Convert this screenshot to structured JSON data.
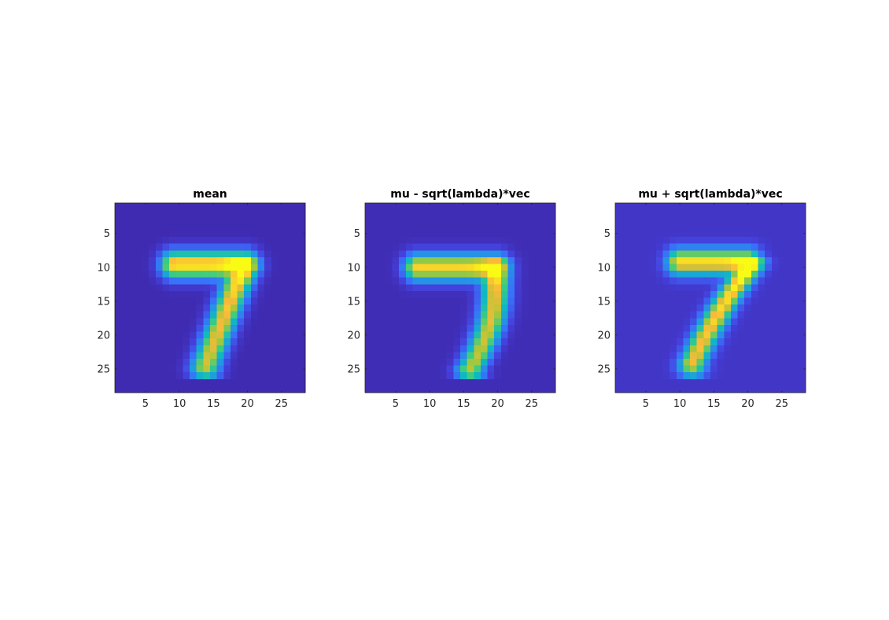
{
  "chart_data": [
    {
      "type": "heatmap",
      "title": "mean",
      "xlabel": "",
      "ylabel": "",
      "xlim": [
        0.5,
        28.5
      ],
      "ylim": [
        0.5,
        28.5
      ],
      "y_reversed": true,
      "xticks": [
        5,
        10,
        15,
        20,
        25
      ],
      "yticks": [
        5,
        10,
        15,
        20,
        25
      ],
      "grid": false,
      "colormap": "parula",
      "image_size": [
        28,
        28
      ],
      "value_range": [
        0,
        1
      ],
      "digit_shape": {
        "top_bar": {
          "row": 9.6,
          "col_start": 9.3,
          "col_end": 19.6,
          "peak": 0.98
        },
        "stroke": {
          "row_start": 10,
          "row_end": 24.6,
          "col_start": 19.4,
          "col_end": 13.8,
          "peak": 0.95,
          "curve": 0.0
        },
        "blur": 1.45,
        "background": 0.02
      }
    },
    {
      "type": "heatmap",
      "title": "mu - sqrt(lambda)*vec",
      "xlabel": "",
      "ylabel": "",
      "xlim": [
        0.5,
        28.5
      ],
      "ylim": [
        0.5,
        28.5
      ],
      "y_reversed": true,
      "xticks": [
        5,
        10,
        15,
        20,
        25
      ],
      "yticks": [
        5,
        10,
        15,
        20,
        25
      ],
      "grid": false,
      "colormap": "parula",
      "image_size": [
        28,
        28
      ],
      "value_range": [
        0,
        1
      ],
      "digit_shape": {
        "top_bar": {
          "row": 10.0,
          "col_start": 8.2,
          "col_end": 19.8,
          "peak": 0.92
        },
        "stroke": {
          "row_start": 10.2,
          "row_end": 25.0,
          "col_start": 19.6,
          "col_end": 16.0,
          "peak": 0.9,
          "curve": 1.3
        },
        "blur": 1.4,
        "background": 0.03
      }
    },
    {
      "type": "heatmap",
      "title": "mu + sqrt(lambda)*vec",
      "xlabel": "",
      "ylabel": "",
      "xlim": [
        0.5,
        28.5
      ],
      "ylim": [
        0.5,
        28.5
      ],
      "y_reversed": true,
      "xticks": [
        5,
        10,
        15,
        20,
        25
      ],
      "yticks": [
        5,
        10,
        15,
        20,
        25
      ],
      "grid": false,
      "colormap": "parula",
      "image_size": [
        28,
        28
      ],
      "value_range": [
        0,
        1
      ],
      "digit_shape": {
        "top_bar": {
          "row": 9.2,
          "col_start": 10.0,
          "col_end": 20.0,
          "peak": 0.95
        },
        "stroke": {
          "row_start": 9.6,
          "row_end": 24.2,
          "col_start": 20.4,
          "col_end": 11.8,
          "peak": 1.0,
          "curve": -0.5
        },
        "blur": 1.35,
        "background": 0.07
      }
    }
  ]
}
